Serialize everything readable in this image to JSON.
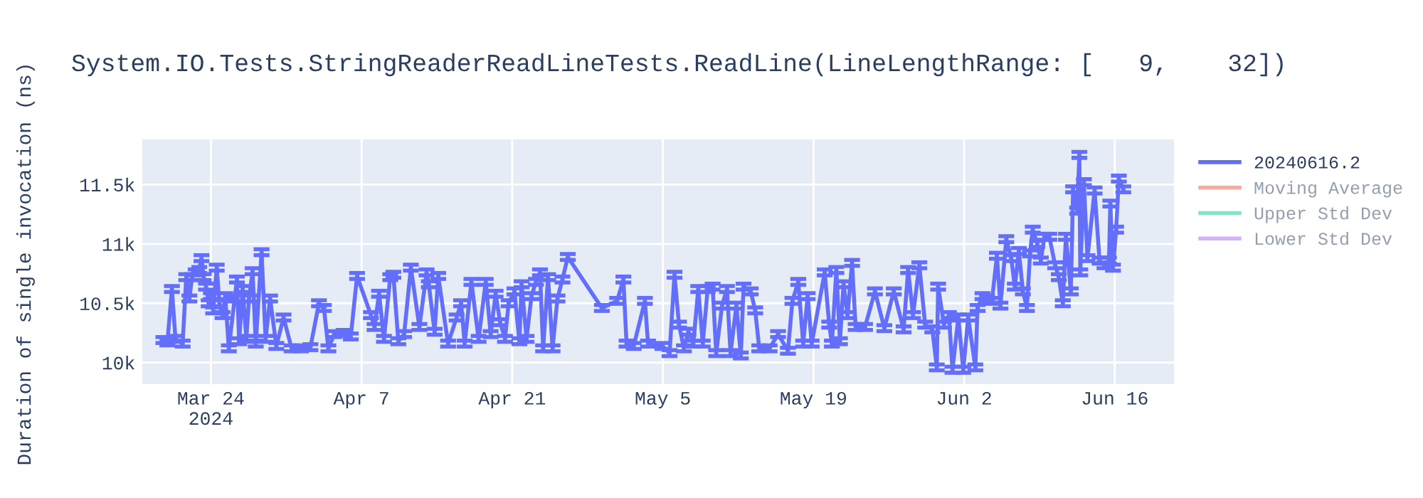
{
  "chart_data": {
    "type": "line",
    "title": "System.IO.Tests.StringReaderReadLineTests.ReadLine(LineLengthRange: [   9,    32])",
    "ylabel": "Duration of single invocation (ns)",
    "xlim": [
      "2024-03-17T15:00",
      "2024-06-21T12:00"
    ],
    "xticks": [
      {
        "value": "2024-03-24",
        "label": "Mar 24\n2024"
      },
      {
        "value": "2024-04-07",
        "label": "Apr 7"
      },
      {
        "value": "2024-04-21",
        "label": "Apr 21"
      },
      {
        "value": "2024-05-05",
        "label": "May 5"
      },
      {
        "value": "2024-05-19",
        "label": "May 19"
      },
      {
        "value": "2024-06-02",
        "label": "Jun 2"
      },
      {
        "value": "2024-06-16",
        "label": "Jun 16"
      }
    ],
    "ylim": [
      9820,
      11880
    ],
    "yticks": [
      {
        "value": 10000,
        "label": "10k"
      },
      {
        "value": 10500,
        "label": "10.5k"
      },
      {
        "value": 11000,
        "label": "11k"
      },
      {
        "value": 11500,
        "label": "11.5k"
      }
    ],
    "grid": true,
    "legend": "top right",
    "marker": "none",
    "line_style": "solid",
    "series": [
      {
        "name": "20240616.2",
        "color": "#636efa",
        "x": [
          "2024-03-19T14:00",
          "2024-03-19T23:00",
          "2024-03-20T09:00",
          "2024-03-20T17:00",
          "2024-03-21T09:00",
          "2024-03-21T17:00",
          "2024-03-22T00:00",
          "2024-03-22T06:00",
          "2024-03-22T14:00",
          "2024-03-22T22:00",
          "2024-03-23T03:00",
          "2024-03-23T08:00",
          "2024-03-23T13:00",
          "2024-03-23T19:00",
          "2024-03-24T00:00",
          "2024-03-24T05:00",
          "2024-03-24T13:00",
          "2024-03-24T19:00",
          "2024-03-25T02:00",
          "2024-03-25T08:00",
          "2024-03-25T16:00",
          "2024-03-26T05:00",
          "2024-03-26T10:00",
          "2024-03-26T15:00",
          "2024-03-26T23:00",
          "2024-03-27T07:00",
          "2024-03-27T13:00",
          "2024-03-27T21:00",
          "2024-03-28T04:00",
          "2024-03-28T17:00",
          "2024-03-29T02:00",
          "2024-03-29T12:00",
          "2024-03-30T02:00",
          "2024-03-30T18:00",
          "2024-03-31T12:00",
          "2024-04-01T09:00",
          "2024-04-02T06:00",
          "2024-04-03T01:00",
          "2024-04-03T12:00",
          "2024-04-03T22:00",
          "2024-04-04T11:00",
          "2024-04-05T08:00",
          "2024-04-06T00:00",
          "2024-04-06T14:00",
          "2024-04-07T21:00",
          "2024-04-08T05:00",
          "2024-04-08T15:00",
          "2024-04-09T02:00",
          "2024-04-09T16:00",
          "2024-04-09T23:00",
          "2024-04-10T10:00",
          "2024-04-10T23:00",
          "2024-04-11T14:00",
          "2024-04-12T09:00",
          "2024-04-13T01:00",
          "2024-04-13T06:00",
          "2024-04-13T19:00",
          "2024-04-14T03:00",
          "2024-04-15T01:00",
          "2024-04-15T20:00",
          "2024-04-16T06:00",
          "2024-04-16T14:00",
          "2024-04-17T05:00",
          "2024-04-17T21:00",
          "2024-04-18T13:00",
          "2024-04-19T00:00",
          "2024-04-19T11:00",
          "2024-04-19T21:00",
          "2024-04-20T08:00",
          "2024-04-20T16:00",
          "2024-04-21T05:00",
          "2024-04-21T16:00",
          "2024-04-21T21:00",
          "2024-04-22T08:00",
          "2024-04-22T19:00",
          "2024-04-23T05:00",
          "2024-04-23T14:00",
          "2024-04-23T21:00",
          "2024-04-24T08:00",
          "2024-04-24T18:00",
          "2024-04-25T05:00",
          "2024-04-25T16:00",
          "2024-04-26T04:00",
          "2024-04-29T08:00",
          "2024-04-30T18:00",
          "2024-05-01T08:00",
          "2024-05-01T15:00",
          "2024-05-02T07:00",
          "2024-05-03T08:00",
          "2024-05-03T15:00",
          "2024-05-04T23:00",
          "2024-05-05T15:00",
          "2024-05-06T02:00",
          "2024-05-06T12:00",
          "2024-05-06T23:00",
          "2024-05-07T09:00",
          "2024-05-07T20:00",
          "2024-05-08T07:00",
          "2024-05-08T17:00",
          "2024-05-09T04:00",
          "2024-05-09T15:00",
          "2024-05-09T23:00",
          "2024-05-10T12:00",
          "2024-05-10T23:00",
          "2024-05-11T07:00",
          "2024-05-11T20:00",
          "2024-05-12T06:00",
          "2024-05-12T12:00",
          "2024-05-13T04:00",
          "2024-05-13T14:00",
          "2024-05-13T23:00",
          "2024-05-14T22:00",
          "2024-05-15T17:00",
          "2024-05-16T15:00",
          "2024-05-17T01:00",
          "2024-05-17T14:00",
          "2024-05-18T01:00",
          "2024-05-18T11:00",
          "2024-05-18T20:00",
          "2024-05-20T01:00",
          "2024-05-20T11:00",
          "2024-05-20T17:00",
          "2024-05-21T03:00",
          "2024-05-21T11:00",
          "2024-05-21T19:00",
          "2024-05-22T04:00",
          "2024-05-22T14:00",
          "2024-05-22T22:00",
          "2024-05-23T19:00",
          "2024-05-24T17:00",
          "2024-05-25T14:00",
          "2024-05-26T11:00",
          "2024-05-27T09:00",
          "2024-05-27T19:00",
          "2024-05-28T06:00",
          "2024-05-28T20:00",
          "2024-05-29T09:00",
          "2024-05-30T01:00",
          "2024-05-30T11:00",
          "2024-05-30T14:00",
          "2024-05-31T03:00",
          "2024-05-31T14:00",
          "2024-05-31T22:00",
          "2024-06-01T11:00",
          "2024-06-01T22:00",
          "2024-06-02T09:00",
          "2024-06-03T01:00",
          "2024-06-03T06:00",
          "2024-06-03T17:00",
          "2024-06-04T03:00",
          "2024-06-04T14:00",
          "2024-06-05T01:00",
          "2024-06-05T09:00",
          "2024-06-05T22:00",
          "2024-06-06T09:00",
          "2024-06-06T17:00",
          "2024-06-07T02:00",
          "2024-06-07T11:00",
          "2024-06-07T20:00",
          "2024-06-08T03:00",
          "2024-06-08T09:00",
          "2024-06-08T19:00",
          "2024-06-09T03:00",
          "2024-06-09T11:00",
          "2024-06-09T22:00",
          "2024-06-10T11:00",
          "2024-06-10T19:00",
          "2024-06-11T04:00",
          "2024-06-11T11:00",
          "2024-06-11T22:00",
          "2024-06-12T03:00",
          "2024-06-12T12:00",
          "2024-06-12T17:00",
          "2024-06-12T19:00",
          "2024-06-13T03:00",
          "2024-06-13T11:00",
          "2024-06-14T03:00",
          "2024-06-14T14:00",
          "2024-06-15T01:00",
          "2024-06-15T11:00",
          "2024-06-15T14:00",
          "2024-06-15T20:00",
          "2024-06-16T03:00",
          "2024-06-16T09:00",
          "2024-06-16T19:00"
        ],
        "values": [
          10190,
          10170,
          10620,
          10200,
          10160,
          10720,
          10540,
          10720,
          10760,
          10780,
          10880,
          10720,
          10640,
          10500,
          10560,
          10440,
          10800,
          10500,
          10400,
          10560,
          10120,
          10540,
          10700,
          10180,
          10620,
          10200,
          10540,
          10770,
          10160,
          10930,
          10200,
          10540,
          10140,
          10380,
          10120,
          10120,
          10130,
          10500,
          10460,
          10120,
          10240,
          10250,
          10220,
          10730,
          10400,
          10300,
          10580,
          10200,
          10720,
          10740,
          10180,
          10240,
          10800,
          10300,
          10760,
          10660,
          10260,
          10730,
          10160,
          10380,
          10500,
          10160,
          10680,
          10200,
          10680,
          10240,
          10580,
          10340,
          10200,
          10500,
          10600,
          10180,
          10660,
          10200,
          10560,
          10680,
          10760,
          10120,
          10720,
          10120,
          10540,
          10700,
          10890,
          10460,
          10520,
          10700,
          10160,
          10140,
          10520,
          10160,
          10140,
          10080,
          10740,
          10320,
          10120,
          10260,
          10160,
          10620,
          10160,
          10620,
          10640,
          10080,
          10480,
          10620,
          10080,
          10480,
          10060,
          10640,
          10600,
          10440,
          10120,
          10120,
          10240,
          10100,
          10520,
          10680,
          10160,
          10560,
          10160,
          10760,
          10320,
          10160,
          10780,
          10180,
          10660,
          10400,
          10840,
          10300,
          10300,
          10600,
          10290,
          10600,
          10280,
          10780,
          10400,
          10820,
          10320,
          10280,
          9960,
          10640,
          10320,
          10400,
          9940,
          10380,
          9940,
          10380,
          9960,
          10460,
          10560,
          10540,
          10520,
          10900,
          10480,
          11040,
          10880,
          10640,
          10940,
          10600,
          10460,
          10920,
          11120,
          11000,
          10860,
          11060,
          11060,
          10820,
          10720,
          10500,
          11060,
          10600,
          11460,
          11280,
          11750,
          10760,
          11520,
          10880,
          11450,
          10860,
          10820,
          10860,
          11340,
          10800,
          11120,
          11550,
          11460
        ],
        "errors": [
          25,
          25,
          25,
          25,
          25,
          25,
          25,
          25,
          25,
          25,
          25,
          25,
          25,
          25,
          25,
          25,
          25,
          25,
          25,
          25,
          25,
          25,
          25,
          25,
          25,
          25,
          25,
          25,
          25,
          25,
          25,
          25,
          25,
          25,
          25,
          25,
          25,
          25,
          25,
          25,
          25,
          25,
          25,
          25,
          25,
          25,
          25,
          25,
          25,
          25,
          25,
          25,
          25,
          25,
          25,
          25,
          25,
          25,
          25,
          25,
          25,
          25,
          25,
          25,
          25,
          25,
          25,
          25,
          25,
          25,
          25,
          25,
          25,
          25,
          25,
          25,
          25,
          25,
          25,
          25,
          25,
          25,
          25,
          25,
          25,
          25,
          25,
          25,
          25,
          25,
          25,
          25,
          25,
          25,
          25,
          25,
          25,
          25,
          25,
          25,
          25,
          25,
          25,
          25,
          25,
          25,
          25,
          25,
          25,
          25,
          25,
          25,
          25,
          25,
          25,
          25,
          25,
          25,
          25,
          25,
          25,
          25,
          25,
          25,
          25,
          25,
          25,
          25,
          25,
          25,
          25,
          25,
          25,
          25,
          25,
          25,
          25,
          25,
          25,
          25,
          25,
          25,
          25,
          25,
          25,
          25,
          25,
          25,
          25,
          25,
          25,
          25,
          25,
          25,
          25,
          25,
          25,
          25,
          25,
          25,
          25,
          25,
          25,
          25,
          25,
          25,
          25,
          25,
          25,
          25,
          25,
          25,
          25,
          25,
          25,
          25,
          25,
          25,
          25,
          25,
          25,
          25,
          25,
          25,
          25
        ]
      },
      {
        "name": "Moving Average",
        "color": "#ef553b"
      },
      {
        "name": "Upper Std Dev",
        "color": "#00cc96"
      },
      {
        "name": "Lower Std Dev",
        "color": "#ab63fa"
      }
    ]
  }
}
